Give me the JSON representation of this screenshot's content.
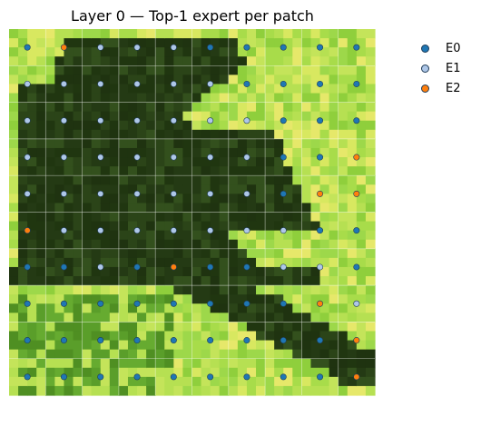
{
  "chart_data": {
    "type": "scatter",
    "title": "Layer 0 — Top-1 expert per patch",
    "grid": {
      "rows": 10,
      "cols": 10
    },
    "legend": {
      "placement": "right",
      "entries": [
        {
          "name": "E0",
          "color": "#1f77b4"
        },
        {
          "name": "E1",
          "color": "#aec7e8"
        },
        {
          "name": "E2",
          "color": "#ff7f0e"
        }
      ]
    },
    "experts": [
      [
        "E0",
        "E2",
        "E1",
        "E1",
        "E1",
        "E0",
        "E0",
        "E0",
        "E0",
        "E0"
      ],
      [
        "E1",
        "E1",
        "E1",
        "E1",
        "E1",
        "E1",
        "E0",
        "E0",
        "E0",
        "E0"
      ],
      [
        "E1",
        "E1",
        "E1",
        "E1",
        "E1",
        "E1",
        "E1",
        "E0",
        "E0",
        "E0"
      ],
      [
        "E1",
        "E1",
        "E1",
        "E1",
        "E1",
        "E1",
        "E1",
        "E0",
        "E0",
        "E2"
      ],
      [
        "E1",
        "E1",
        "E1",
        "E1",
        "E1",
        "E1",
        "E1",
        "E0",
        "E2",
        "E2"
      ],
      [
        "E2",
        "E1",
        "E1",
        "E1",
        "E1",
        "E1",
        "E1",
        "E1",
        "E0",
        "E0"
      ],
      [
        "E0",
        "E0",
        "E1",
        "E0",
        "E2",
        "E0",
        "E0",
        "E1",
        "E1",
        "E0"
      ],
      [
        "E0",
        "E0",
        "E0",
        "E0",
        "E0",
        "E0",
        "E0",
        "E0",
        "E2",
        "E1"
      ],
      [
        "E0",
        "E0",
        "E0",
        "E0",
        "E0",
        "E0",
        "E0",
        "E0",
        "E0",
        "E2"
      ],
      [
        "E0",
        "E0",
        "E0",
        "E0",
        "E0",
        "E0",
        "E0",
        "E0",
        "E0",
        "E2"
      ]
    ]
  },
  "image": {
    "description_colors": {
      "dark": "#243a14",
      "mid": "#5f9e2a",
      "light": "#a8dc4a",
      "yellow": "#e6e86a"
    }
  }
}
